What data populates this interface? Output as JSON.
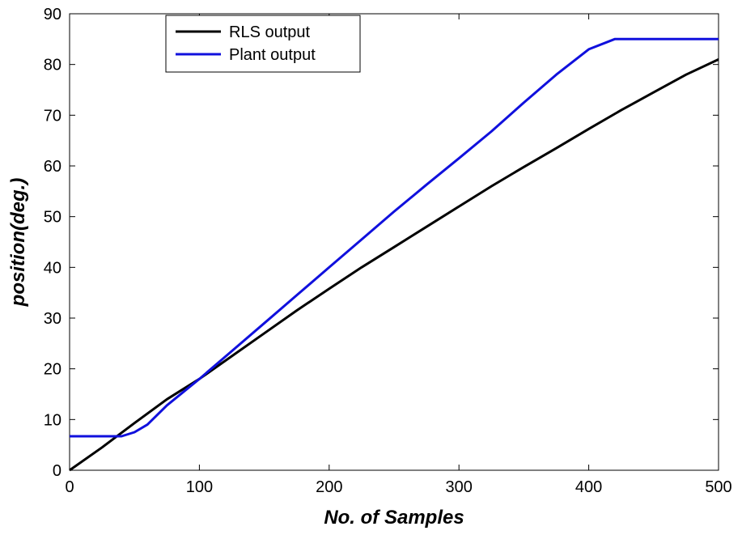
{
  "chart_data": {
    "type": "line",
    "title": "",
    "xlabel": "No. of Samples",
    "ylabel": "position(deg.)",
    "xlim": [
      0,
      500
    ],
    "ylim": [
      0,
      90
    ],
    "xticks": [
      0,
      100,
      200,
      300,
      400,
      500
    ],
    "yticks": [
      0,
      10,
      20,
      30,
      40,
      50,
      60,
      70,
      80,
      90
    ],
    "grid": false,
    "legend_position": "top-left",
    "series": [
      {
        "name": "RLS output",
        "color": "#000000",
        "x": [
          0,
          25,
          50,
          75,
          100,
          125,
          150,
          175,
          200,
          225,
          250,
          275,
          300,
          325,
          350,
          375,
          400,
          425,
          450,
          475,
          500
        ],
        "y": [
          0,
          4.5,
          9.3,
          14,
          18,
          22.5,
          27,
          31.5,
          35.8,
          40,
          44,
          48,
          52,
          56,
          59.8,
          63.5,
          67.3,
          71,
          74.5,
          78,
          81
        ]
      },
      {
        "name": "Plant output",
        "color": "#1010dd",
        "x": [
          0,
          25,
          40,
          50,
          60,
          75,
          100,
          125,
          150,
          175,
          200,
          225,
          250,
          275,
          300,
          325,
          350,
          375,
          400,
          420,
          450,
          500
        ],
        "y": [
          6.7,
          6.7,
          6.7,
          7.5,
          9,
          12.8,
          18,
          23.5,
          29,
          34.5,
          40,
          45.5,
          51,
          56.3,
          61.5,
          66.8,
          72.5,
          78,
          83,
          85,
          85,
          85
        ]
      }
    ]
  }
}
